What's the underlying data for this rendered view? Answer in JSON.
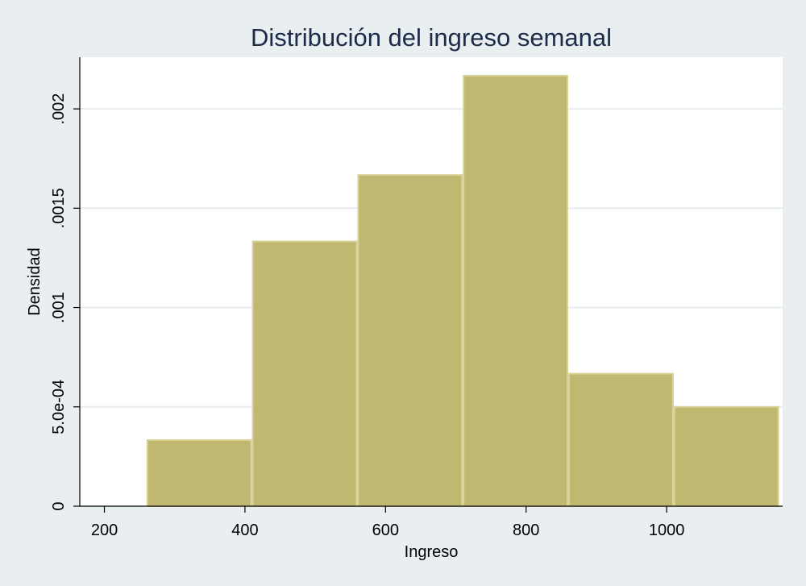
{
  "chart_data": {
    "type": "bar",
    "subtype": "histogram",
    "title": "Distribución del ingreso semanal",
    "xlabel": "Ingreso",
    "ylabel": "Densidad",
    "xlim": [
      165,
      1165
    ],
    "ylim": [
      0,
      0.00226
    ],
    "x_ticks": [
      200,
      400,
      600,
      800,
      1000
    ],
    "x_tick_labels": [
      "200",
      "400",
      "600",
      "800",
      "1000"
    ],
    "y_ticks": [
      0,
      0.0005,
      0.001,
      0.0015,
      0.002
    ],
    "y_tick_labels": [
      "0",
      "5.0e-04",
      ".001",
      ".0015",
      ".002"
    ],
    "grid": true,
    "bins": [
      {
        "start": 260,
        "end": 410,
        "density": 0.000333
      },
      {
        "start": 410,
        "end": 560,
        "density": 0.001333
      },
      {
        "start": 560,
        "end": 710,
        "density": 0.001667
      },
      {
        "start": 710,
        "end": 860,
        "density": 0.002167
      },
      {
        "start": 860,
        "end": 1010,
        "density": 0.000667
      },
      {
        "start": 1010,
        "end": 1160,
        "density": 0.0005
      }
    ],
    "colors": {
      "background": "#e9eef0",
      "plot_background": "#ffffff",
      "bar_fill": "#c0b870",
      "bar_edge": "#d8d29a",
      "grid": "#e6ecef",
      "axis": "#000000",
      "title": "#1c2b4a"
    }
  }
}
